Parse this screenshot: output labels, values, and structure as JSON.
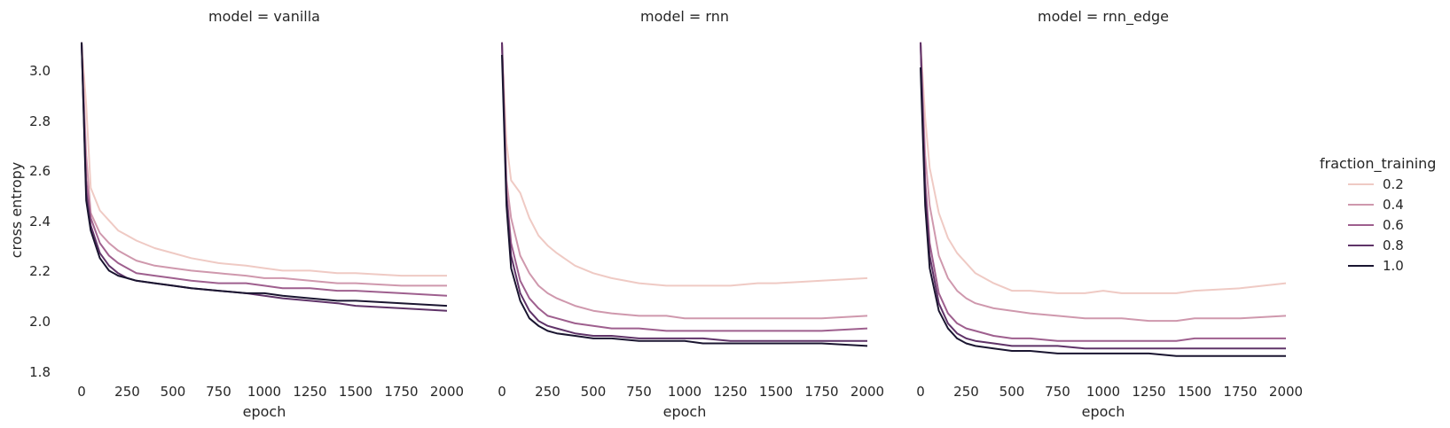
{
  "chart_data": {
    "type": "line",
    "facet_titles": [
      "model = vanilla",
      "model = rnn",
      "model = rnn_edge"
    ],
    "xlabel": "epoch",
    "ylabel": "cross entropy",
    "xlim": [
      -10,
      2010
    ],
    "ylim": [
      1.75,
      3.11
    ],
    "xticks": [
      0,
      250,
      500,
      750,
      1000,
      1250,
      1500,
      1750,
      2000
    ],
    "yticks": [
      1.8,
      2.0,
      2.2,
      2.4,
      2.6,
      2.8,
      3.0
    ],
    "ytick_labels": [
      "1.8",
      "2.0",
      "2.2",
      "2.4",
      "2.6",
      "2.8",
      "3.0"
    ],
    "grid": false,
    "legend": {
      "title": "fraction_training",
      "placement": "right",
      "entries": [
        "0.2",
        "0.4",
        "0.6",
        "0.8",
        "1.0"
      ],
      "colors": [
        "#efcac4",
        "#cf98ad",
        "#9e5f8e",
        "#5f3368",
        "#1a1530"
      ]
    },
    "x": [
      0,
      25,
      50,
      100,
      150,
      200,
      250,
      300,
      400,
      500,
      600,
      750,
      900,
      1000,
      1100,
      1250,
      1400,
      1500,
      1750,
      2000
    ],
    "facets": [
      {
        "model": "vanilla",
        "series": [
          {
            "name": "0.2",
            "values": [
              3.1,
              2.85,
              2.52,
              2.43,
              2.39,
              2.35,
              2.33,
              2.31,
              2.28,
              2.26,
              2.24,
              2.22,
              2.21,
              2.2,
              2.19,
              2.19,
              2.18,
              2.18,
              2.17,
              2.17
            ]
          },
          {
            "name": "0.4",
            "values": [
              3.1,
              2.65,
              2.42,
              2.34,
              2.3,
              2.27,
              2.25,
              2.23,
              2.21,
              2.2,
              2.19,
              2.18,
              2.17,
              2.16,
              2.16,
              2.15,
              2.14,
              2.14,
              2.13,
              2.13
            ]
          },
          {
            "name": "0.6",
            "values": [
              3.1,
              2.55,
              2.4,
              2.3,
              2.25,
              2.22,
              2.2,
              2.18,
              2.17,
              2.16,
              2.15,
              2.14,
              2.14,
              2.13,
              2.12,
              2.12,
              2.11,
              2.11,
              2.1,
              2.09
            ]
          },
          {
            "name": "0.8",
            "values": [
              3.1,
              2.5,
              2.37,
              2.26,
              2.21,
              2.18,
              2.16,
              2.15,
              2.14,
              2.13,
              2.12,
              2.11,
              2.1,
              2.09,
              2.08,
              2.07,
              2.06,
              2.05,
              2.04,
              2.03
            ]
          },
          {
            "name": "1.0",
            "values": [
              3.1,
              2.47,
              2.35,
              2.24,
              2.19,
              2.17,
              2.16,
              2.15,
              2.14,
              2.13,
              2.12,
              2.11,
              2.1,
              2.1,
              2.09,
              2.08,
              2.07,
              2.07,
              2.06,
              2.05
            ]
          }
        ]
      },
      {
        "model": "rnn",
        "series": [
          {
            "name": "0.2",
            "values": [
              3.1,
              2.7,
              2.55,
              2.5,
              2.4,
              2.33,
              2.29,
              2.26,
              2.21,
              2.18,
              2.16,
              2.14,
              2.13,
              2.13,
              2.13,
              2.13,
              2.14,
              2.14,
              2.15,
              2.16
            ]
          },
          {
            "name": "0.4",
            "values": [
              3.1,
              2.55,
              2.4,
              2.25,
              2.18,
              2.13,
              2.1,
              2.08,
              2.05,
              2.03,
              2.02,
              2.01,
              2.01,
              2.0,
              2.0,
              2.0,
              2.0,
              2.0,
              2.0,
              2.01
            ]
          },
          {
            "name": "0.6",
            "values": [
              3.1,
              2.5,
              2.3,
              2.15,
              2.08,
              2.04,
              2.01,
              2.0,
              1.98,
              1.97,
              1.96,
              1.96,
              1.95,
              1.95,
              1.95,
              1.95,
              1.95,
              1.95,
              1.95,
              1.96
            ]
          },
          {
            "name": "0.8",
            "values": [
              3.1,
              2.48,
              2.25,
              2.1,
              2.03,
              1.99,
              1.97,
              1.96,
              1.94,
              1.93,
              1.93,
              1.92,
              1.92,
              1.92,
              1.92,
              1.91,
              1.91,
              1.91,
              1.91,
              1.91
            ]
          },
          {
            "name": "1.0",
            "values": [
              3.05,
              2.45,
              2.2,
              2.07,
              2.0,
              1.97,
              1.95,
              1.94,
              1.93,
              1.92,
              1.92,
              1.91,
              1.91,
              1.91,
              1.9,
              1.9,
              1.9,
              1.9,
              1.9,
              1.89
            ]
          }
        ]
      },
      {
        "model": "rnn_edge",
        "series": [
          {
            "name": "0.2",
            "values": [
              3.1,
              2.8,
              2.6,
              2.42,
              2.32,
              2.26,
              2.22,
              2.18,
              2.14,
              2.11,
              2.11,
              2.1,
              2.1,
              2.11,
              2.1,
              2.1,
              2.1,
              2.11,
              2.12,
              2.14
            ]
          },
          {
            "name": "0.4",
            "values": [
              3.1,
              2.65,
              2.45,
              2.25,
              2.16,
              2.11,
              2.08,
              2.06,
              2.04,
              2.03,
              2.02,
              2.01,
              2.0,
              2.0,
              2.0,
              1.99,
              1.99,
              2.0,
              2.0,
              2.01
            ]
          },
          {
            "name": "0.6",
            "values": [
              3.1,
              2.55,
              2.3,
              2.1,
              2.02,
              1.98,
              1.96,
              1.95,
              1.93,
              1.92,
              1.92,
              1.91,
              1.91,
              1.91,
              1.91,
              1.91,
              1.91,
              1.92,
              1.92,
              1.92
            ]
          },
          {
            "name": "0.8",
            "values": [
              3.1,
              2.5,
              2.25,
              2.06,
              1.98,
              1.94,
              1.92,
              1.91,
              1.9,
              1.89,
              1.89,
              1.89,
              1.88,
              1.88,
              1.88,
              1.88,
              1.88,
              1.88,
              1.88,
              1.88
            ]
          },
          {
            "name": "1.0",
            "values": [
              3.0,
              2.45,
              2.2,
              2.03,
              1.96,
              1.92,
              1.9,
              1.89,
              1.88,
              1.87,
              1.87,
              1.86,
              1.86,
              1.86,
              1.86,
              1.86,
              1.85,
              1.85,
              1.85,
              1.85
            ]
          }
        ]
      }
    ]
  }
}
